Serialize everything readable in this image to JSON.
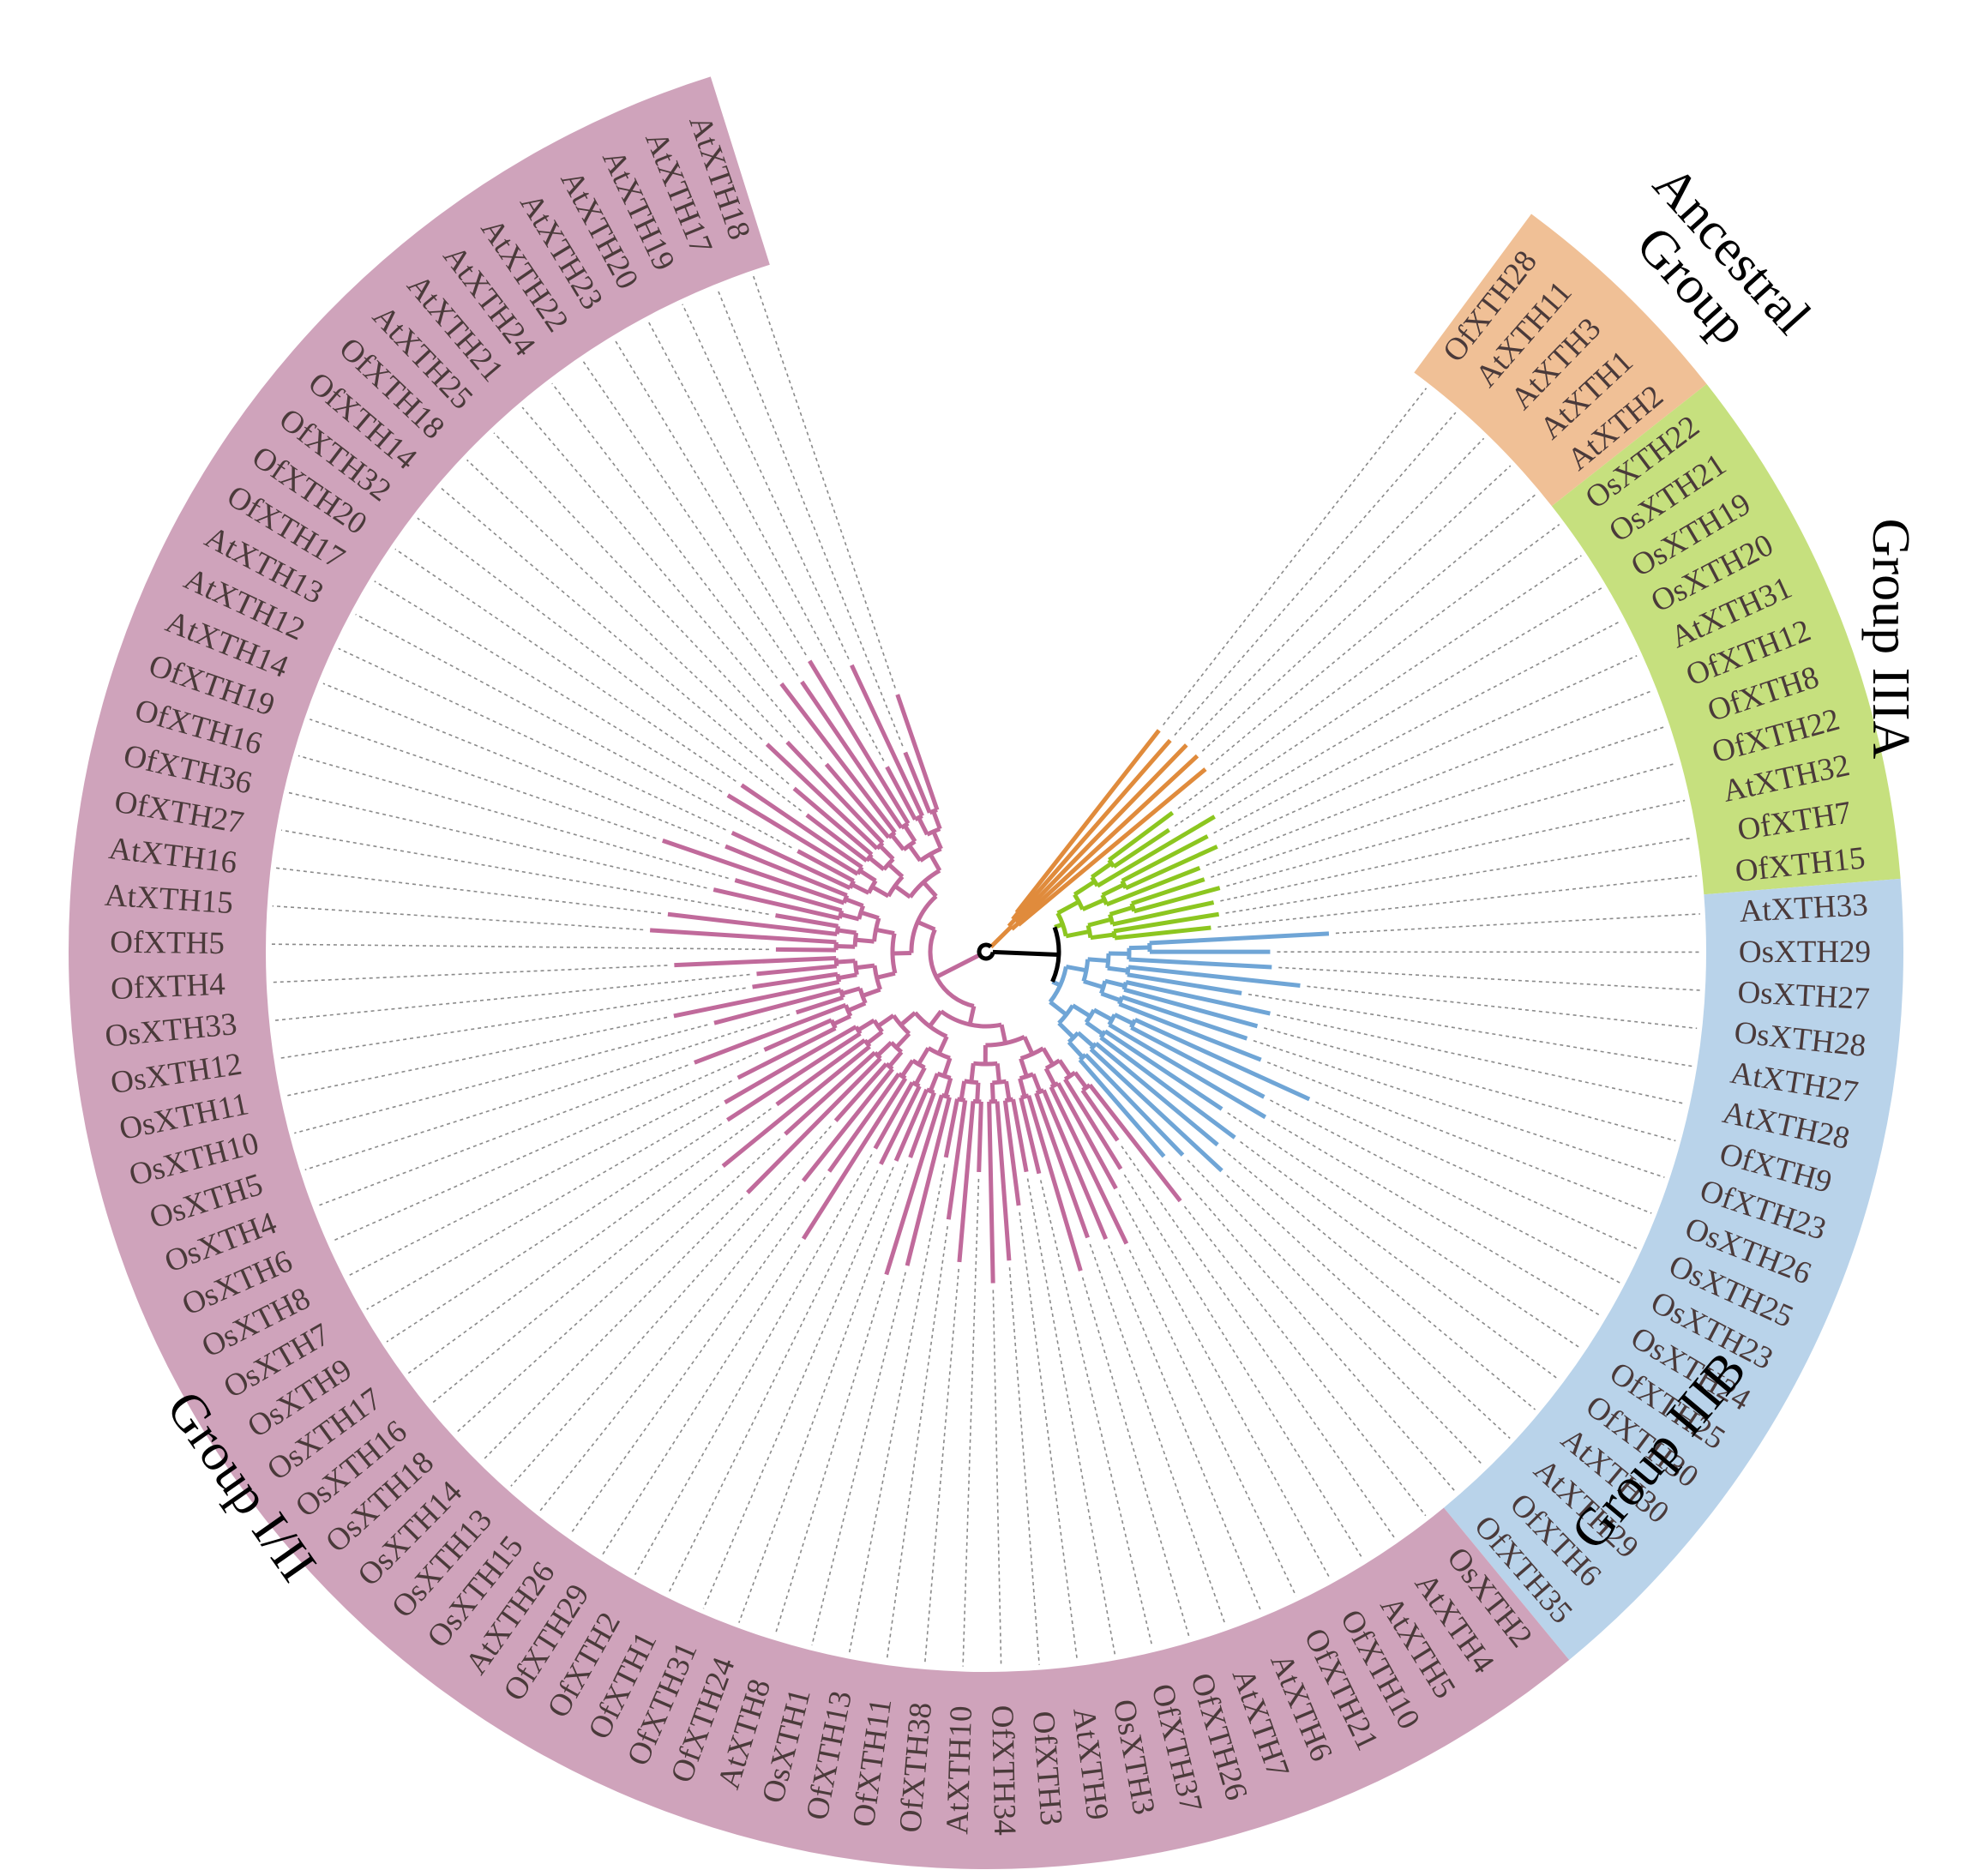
{
  "figure": {
    "type": "circular-phylogenetic-tree"
  },
  "groups": [
    {
      "key": "ancestral",
      "title_lines": [
        "Ancestral",
        "Group"
      ],
      "color": "#f0c096",
      "branch_color": "#e08b3c"
    },
    {
      "key": "iiia",
      "title_lines": [
        "Group IIIA"
      ],
      "color": "#c6e07e",
      "branch_color": "#8cc620"
    },
    {
      "key": "iiib",
      "title_lines": [
        "Group IIIB"
      ],
      "color": "#b9d3ea",
      "branch_color": "#6fa5d6"
    },
    {
      "key": "i_ii",
      "title_lines": [
        "Group I/II"
      ],
      "color": "#cfa3bb",
      "branch_color": "#c06a9b"
    }
  ],
  "leaves": [
    {
      "label": "OfXTH28",
      "group": "ancestral"
    },
    {
      "label": "AtXTH11",
      "group": "ancestral"
    },
    {
      "label": "AtXTH3",
      "group": "ancestral"
    },
    {
      "label": "AtXTH1",
      "group": "ancestral"
    },
    {
      "label": "AtXTH2",
      "group": "ancestral"
    },
    {
      "label": "OsXTH22",
      "group": "iiia"
    },
    {
      "label": "OsXTH21",
      "group": "iiia"
    },
    {
      "label": "OsXTH19",
      "group": "iiia"
    },
    {
      "label": "OsXTH20",
      "group": "iiia"
    },
    {
      "label": "AtXTH31",
      "group": "iiia"
    },
    {
      "label": "OfXTH12",
      "group": "iiia"
    },
    {
      "label": "OfXTH8",
      "group": "iiia"
    },
    {
      "label": "OfXTH22",
      "group": "iiia"
    },
    {
      "label": "AtXTH32",
      "group": "iiia"
    },
    {
      "label": "OfXTH7",
      "group": "iiia"
    },
    {
      "label": "OfXTH15",
      "group": "iiia"
    },
    {
      "label": "AtXTH33",
      "group": "iiib"
    },
    {
      "label": "OsXTH29",
      "group": "iiib"
    },
    {
      "label": "OsXTH27",
      "group": "iiib"
    },
    {
      "label": "OsXTH28",
      "group": "iiib"
    },
    {
      "label": "AtXTH27",
      "group": "iiib"
    },
    {
      "label": "AtXTH28",
      "group": "iiib"
    },
    {
      "label": "OfXTH9",
      "group": "iiib"
    },
    {
      "label": "OfXTH23",
      "group": "iiib"
    },
    {
      "label": "OsXTH26",
      "group": "iiib"
    },
    {
      "label": "OsXTH25",
      "group": "iiib"
    },
    {
      "label": "OsXTH23",
      "group": "iiib"
    },
    {
      "label": "OsXTH24",
      "group": "iiib"
    },
    {
      "label": "OfXTH25",
      "group": "iiib"
    },
    {
      "label": "OfXTH30",
      "group": "iiib"
    },
    {
      "label": "AtXTH30",
      "group": "iiib"
    },
    {
      "label": "AtXTH29",
      "group": "iiib"
    },
    {
      "label": "OfXTH6",
      "group": "iiib"
    },
    {
      "label": "OfXTH35",
      "group": "iiib"
    },
    {
      "label": "OsXTH2",
      "group": "i_ii"
    },
    {
      "label": "AtXTH4",
      "group": "i_ii"
    },
    {
      "label": "AtXTH5",
      "group": "i_ii"
    },
    {
      "label": "OfXTH10",
      "group": "i_ii"
    },
    {
      "label": "OfXTH21",
      "group": "i_ii"
    },
    {
      "label": "AtXTH6",
      "group": "i_ii"
    },
    {
      "label": "AtXTH7",
      "group": "i_ii"
    },
    {
      "label": "OfXTH26",
      "group": "i_ii"
    },
    {
      "label": "OfXTH37",
      "group": "i_ii"
    },
    {
      "label": "OsXTH3",
      "group": "i_ii"
    },
    {
      "label": "AtXTH9",
      "group": "i_ii"
    },
    {
      "label": "OfXTH3",
      "group": "i_ii"
    },
    {
      "label": "OfXTH34",
      "group": "i_ii"
    },
    {
      "label": "AtXTH10",
      "group": "i_ii"
    },
    {
      "label": "OfXTH38",
      "group": "i_ii"
    },
    {
      "label": "OfXTH11",
      "group": "i_ii"
    },
    {
      "label": "OfXTH13",
      "group": "i_ii"
    },
    {
      "label": "OsXTH1",
      "group": "i_ii"
    },
    {
      "label": "AtXTH8",
      "group": "i_ii"
    },
    {
      "label": "OfXTH24",
      "group": "i_ii"
    },
    {
      "label": "OfXTH31",
      "group": "i_ii"
    },
    {
      "label": "OfXTH1",
      "group": "i_ii"
    },
    {
      "label": "OfXTH2",
      "group": "i_ii"
    },
    {
      "label": "OfXTH29",
      "group": "i_ii"
    },
    {
      "label": "AtXTH26",
      "group": "i_ii"
    },
    {
      "label": "OsXTH15",
      "group": "i_ii"
    },
    {
      "label": "OsXTH13",
      "group": "i_ii"
    },
    {
      "label": "OsXTH14",
      "group": "i_ii"
    },
    {
      "label": "OsXTH18",
      "group": "i_ii"
    },
    {
      "label": "OsXTH16",
      "group": "i_ii"
    },
    {
      "label": "OsXTH17",
      "group": "i_ii"
    },
    {
      "label": "OsXTH9",
      "group": "i_ii"
    },
    {
      "label": "OsXTH7",
      "group": "i_ii"
    },
    {
      "label": "OsXTH8",
      "group": "i_ii"
    },
    {
      "label": "OsXTH6",
      "group": "i_ii"
    },
    {
      "label": "OsXTH4",
      "group": "i_ii"
    },
    {
      "label": "OsXTH5",
      "group": "i_ii"
    },
    {
      "label": "OsXTH10",
      "group": "i_ii"
    },
    {
      "label": "OsXTH11",
      "group": "i_ii"
    },
    {
      "label": "OsXTH12",
      "group": "i_ii"
    },
    {
      "label": "OsXTH33",
      "group": "i_ii"
    },
    {
      "label": "OfXTH4",
      "group": "i_ii"
    },
    {
      "label": "OfXTH5",
      "group": "i_ii"
    },
    {
      "label": "AtXTH15",
      "group": "i_ii"
    },
    {
      "label": "AtXTH16",
      "group": "i_ii"
    },
    {
      "label": "OfXTH27",
      "group": "i_ii"
    },
    {
      "label": "OfXTH36",
      "group": "i_ii"
    },
    {
      "label": "OfXTH16",
      "group": "i_ii"
    },
    {
      "label": "OfXTH19",
      "group": "i_ii"
    },
    {
      "label": "AtXTH14",
      "group": "i_ii"
    },
    {
      "label": "AtXTH12",
      "group": "i_ii"
    },
    {
      "label": "AtXTH13",
      "group": "i_ii"
    },
    {
      "label": "OfXTH17",
      "group": "i_ii"
    },
    {
      "label": "OfXTH20",
      "group": "i_ii"
    },
    {
      "label": "OfXTH32",
      "group": "i_ii"
    },
    {
      "label": "OfXTH14",
      "group": "i_ii"
    },
    {
      "label": "OfXTH18",
      "group": "i_ii"
    },
    {
      "label": "AtXTH25",
      "group": "i_ii"
    },
    {
      "label": "AtXTH21",
      "group": "i_ii"
    },
    {
      "label": "AtXTH24",
      "group": "i_ii"
    },
    {
      "label": "AtXTH22",
      "group": "i_ii"
    },
    {
      "label": "AtXTH23",
      "group": "i_ii"
    },
    {
      "label": "AtXTH20",
      "group": "i_ii"
    },
    {
      "label": "AtXTH19",
      "group": "i_ii"
    },
    {
      "label": "AtXTH17",
      "group": "i_ii"
    },
    {
      "label": "AtXTH18",
      "group": "i_ii"
    }
  ],
  "root_color": "#000000",
  "guide_color": "#8a8a8a"
}
